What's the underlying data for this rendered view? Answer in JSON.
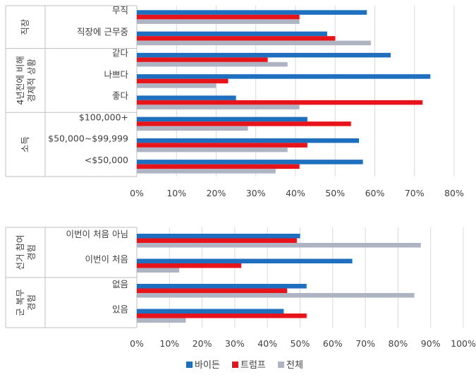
{
  "colors": {
    "biden": "#1f6fbf",
    "trump": "#e8141c",
    "total": "#aeb4c2",
    "grid": "#d9d9d9",
    "frame": "#bfbfbf"
  },
  "chart_data": [
    {
      "type": "bar",
      "orientation": "horizontal",
      "groups": [
        {
          "label": "직장",
          "categories": [
            "무직",
            "직장에 근무중"
          ]
        },
        {
          "label": "4년전에 비해 경제적 상황",
          "categories": [
            "같다",
            "나쁘다",
            "좋다"
          ]
        },
        {
          "label": "소득",
          "categories": [
            "$100,000+",
            "$50,000~$99,999",
            "<$50,000"
          ]
        }
      ],
      "categories": [
        "무직",
        "직장에 근무중",
        "같다",
        "나쁘다",
        "좋다",
        "$100,000+",
        "$50,000~$99,999",
        "<$50,000"
      ],
      "series": [
        {
          "name": "바이든",
          "values": [
            58,
            48,
            64,
            74,
            25,
            43,
            56,
            57
          ]
        },
        {
          "name": "트럼프",
          "values": [
            41,
            50,
            33,
            23,
            72,
            54,
            43,
            41
          ]
        },
        {
          "name": "전체",
          "values": [
            41,
            59,
            38,
            20,
            41,
            28,
            38,
            35
          ]
        }
      ],
      "xlim": [
        0,
        80
      ],
      "xticks": [
        "0%",
        "10%",
        "20%",
        "30%",
        "40%",
        "50%",
        "60%",
        "70%",
        "80%"
      ],
      "grid": true
    },
    {
      "type": "bar",
      "orientation": "horizontal",
      "groups": [
        {
          "label": "선거 참여 경험",
          "categories": [
            "이번이 처음 아님",
            "이번이 처음"
          ]
        },
        {
          "label": "군 복무 경험",
          "categories": [
            "없음",
            "있음"
          ]
        }
      ],
      "categories": [
        "이번이 처음 아님",
        "이번이 처음",
        "없음",
        "있음"
      ],
      "series": [
        {
          "name": "바이든",
          "values": [
            50,
            66,
            52,
            45
          ]
        },
        {
          "name": "트럼프",
          "values": [
            49,
            32,
            46,
            52
          ]
        },
        {
          "name": "전체",
          "values": [
            87,
            13,
            85,
            15
          ]
        }
      ],
      "xlim": [
        0,
        100
      ],
      "xticks": [
        "0%",
        "10%",
        "20%",
        "30%",
        "40%",
        "50%",
        "60%",
        "70%",
        "80%",
        "90%",
        "100%"
      ],
      "grid": true
    }
  ],
  "legend": [
    {
      "name": "바이든",
      "color": "#1f6fbf"
    },
    {
      "name": "트럼프",
      "color": "#e8141c"
    },
    {
      "name": "전체",
      "color": "#aeb4c2"
    }
  ]
}
